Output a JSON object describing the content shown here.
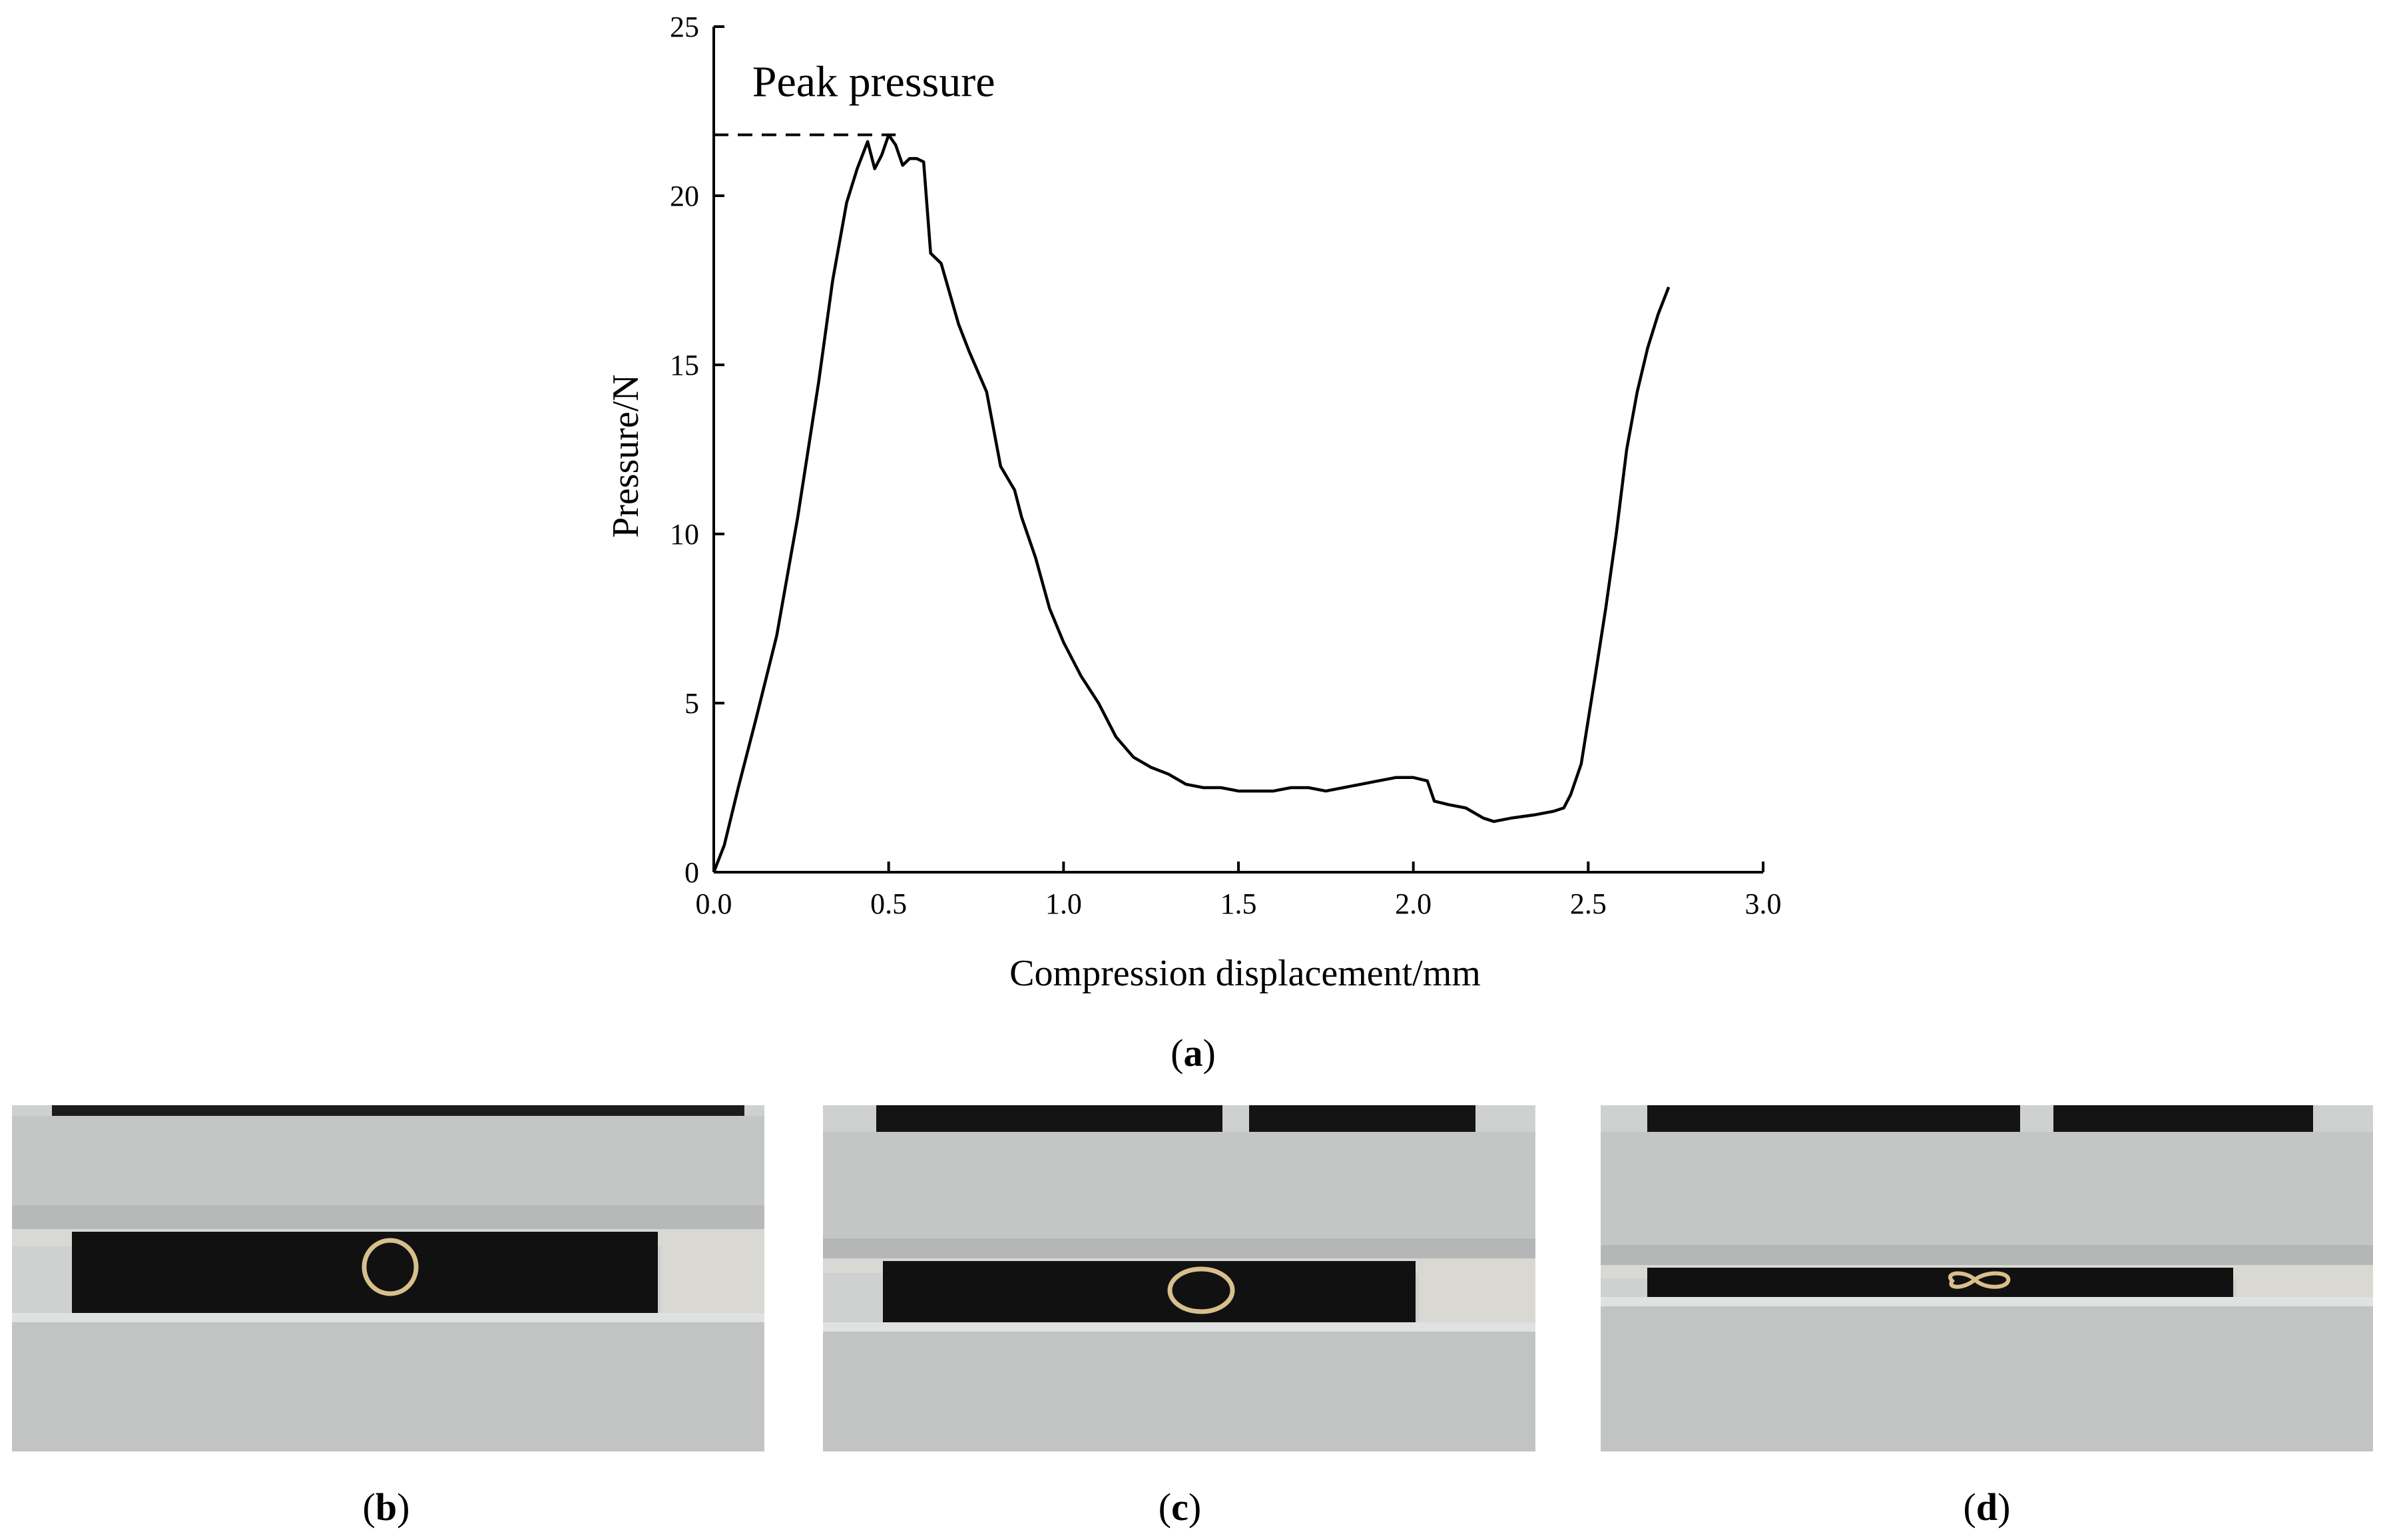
{
  "chart_data": {
    "type": "line",
    "title": "",
    "xlabel": "Compression displacement/mm",
    "ylabel": "Pressure/N",
    "xlim": [
      0,
      3.0
    ],
    "ylim": [
      0,
      25
    ],
    "xticks": [
      "0.0",
      "0.5",
      "1.0",
      "1.5",
      "2.0",
      "2.5",
      "3.0"
    ],
    "yticks": [
      "0",
      "5",
      "10",
      "15",
      "20",
      "25"
    ],
    "grid": false,
    "legend": "none",
    "annotation": {
      "text": "Peak pressure",
      "value": 21.8,
      "style": "dashed line from y-axis to peak"
    },
    "series": [
      {
        "color": "#000000",
        "x": [
          0.0,
          0.03,
          0.07,
          0.12,
          0.18,
          0.24,
          0.3,
          0.34,
          0.38,
          0.41,
          0.44,
          0.46,
          0.48,
          0.5,
          0.52,
          0.54,
          0.56,
          0.58,
          0.6,
          0.62,
          0.65,
          0.7,
          0.73,
          0.78,
          0.82,
          0.86,
          0.88,
          0.92,
          0.96,
          1.0,
          1.05,
          1.1,
          1.15,
          1.2,
          1.25,
          1.3,
          1.35,
          1.4,
          1.45,
          1.5,
          1.55,
          1.6,
          1.65,
          1.7,
          1.75,
          1.8,
          1.85,
          1.9,
          1.95,
          2.0,
          2.04,
          2.06,
          2.1,
          2.15,
          2.2,
          2.23,
          2.28,
          2.35,
          2.4,
          2.43,
          2.45,
          2.48,
          2.5,
          2.52,
          2.55,
          2.58,
          2.61,
          2.64,
          2.67,
          2.7,
          2.73
        ],
        "y": [
          0.0,
          0.8,
          2.5,
          4.5,
          7.0,
          10.5,
          14.5,
          17.5,
          19.8,
          20.8,
          21.6,
          20.8,
          21.2,
          21.8,
          21.5,
          20.9,
          21.1,
          21.1,
          21.0,
          18.3,
          18.0,
          16.2,
          15.4,
          14.2,
          12.0,
          11.3,
          10.5,
          9.3,
          7.8,
          6.8,
          5.8,
          5.0,
          4.0,
          3.4,
          3.1,
          2.9,
          2.6,
          2.5,
          2.5,
          2.4,
          2.4,
          2.4,
          2.5,
          2.5,
          2.4,
          2.5,
          2.6,
          2.7,
          2.8,
          2.8,
          2.7,
          2.1,
          2.0,
          1.9,
          1.6,
          1.5,
          1.6,
          1.7,
          1.8,
          1.9,
          2.3,
          3.2,
          4.5,
          5.8,
          7.8,
          10.0,
          12.5,
          14.2,
          15.5,
          16.5,
          17.3
        ]
      }
    ]
  },
  "panels": {
    "a": "a",
    "b": "b",
    "c": "c",
    "d": "d"
  }
}
